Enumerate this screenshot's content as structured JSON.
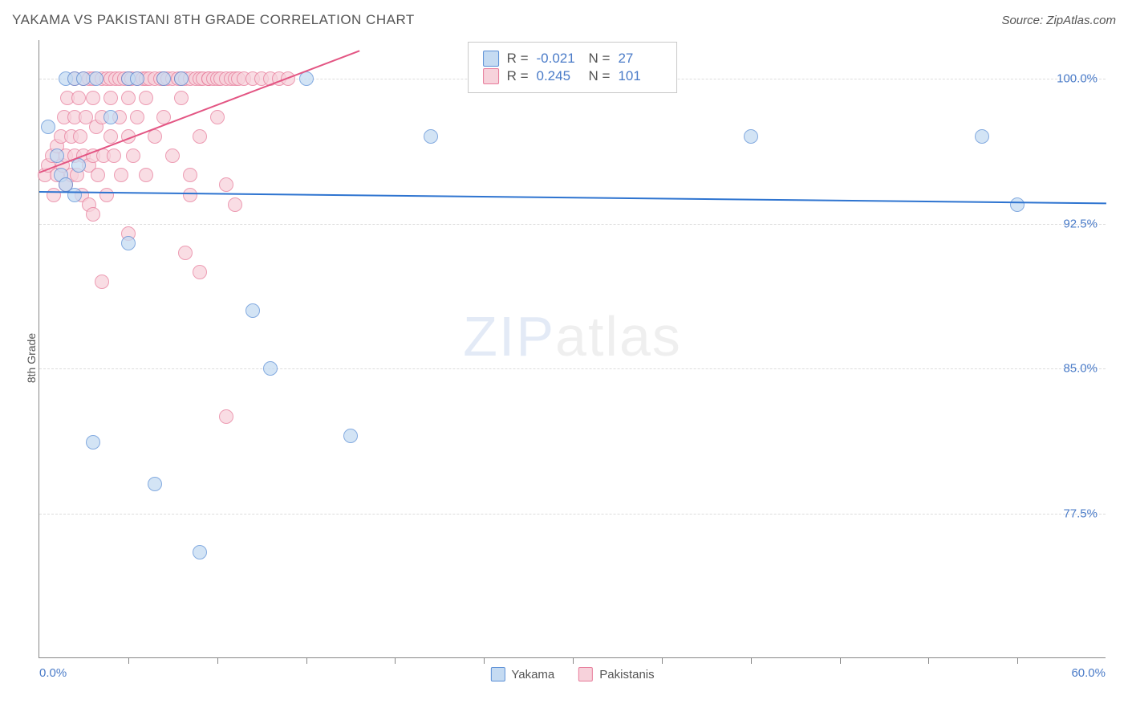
{
  "header": {
    "title": "YAKAMA VS PAKISTANI 8TH GRADE CORRELATION CHART",
    "source": "Source: ZipAtlas.com"
  },
  "watermark": {
    "zip": "ZIP",
    "atlas": "atlas"
  },
  "chart": {
    "type": "scatter",
    "ylabel": "8th Grade",
    "xlim": [
      0,
      60
    ],
    "ylim": [
      70,
      102
    ],
    "background_color": "#ffffff",
    "grid_color": "#dddddd",
    "axis_color": "#888888",
    "xaxis_min_label": "0.0%",
    "xaxis_max_label": "60.0%",
    "ytick_values": [
      77.5,
      85.0,
      92.5,
      100.0
    ],
    "ytick_labels": [
      "77.5%",
      "85.0%",
      "92.5%",
      "100.0%"
    ],
    "xtick_values": [
      5,
      10,
      15,
      20,
      25,
      30,
      35,
      40,
      45,
      50,
      55
    ],
    "point_radius": 9,
    "series": {
      "yakama": {
        "label": "Yakama",
        "fill": "#c5dbf2",
        "stroke": "#5b8fd6",
        "r_label": "R =",
        "r_value": "-0.021",
        "n_label": "N =",
        "n_value": "27",
        "trend": {
          "x1": 0,
          "y1": 94.2,
          "x2": 60,
          "y2": 93.6,
          "color": "#2e74d0",
          "width": 2
        },
        "points": [
          [
            0.5,
            97.5
          ],
          [
            1.0,
            96.0
          ],
          [
            1.5,
            100.0
          ],
          [
            2.0,
            100.0
          ],
          [
            2.5,
            100.0
          ],
          [
            1.2,
            95.0
          ],
          [
            2.0,
            94.0
          ],
          [
            3.2,
            100.0
          ],
          [
            4.0,
            98.0
          ],
          [
            5.0,
            100.0
          ],
          [
            5.5,
            100.0
          ],
          [
            5.0,
            91.5
          ],
          [
            7.0,
            100.0
          ],
          [
            8.0,
            100.0
          ],
          [
            15.0,
            100.0
          ],
          [
            22.0,
            97.0
          ],
          [
            12.0,
            88.0
          ],
          [
            13.0,
            85.0
          ],
          [
            6.5,
            79.0
          ],
          [
            3.0,
            81.2
          ],
          [
            17.5,
            81.5
          ],
          [
            9.0,
            75.5
          ],
          [
            40.0,
            97.0
          ],
          [
            53.0,
            97.0
          ],
          [
            55.0,
            93.5
          ],
          [
            1.5,
            94.5
          ],
          [
            2.2,
            95.5
          ]
        ]
      },
      "pakistanis": {
        "label": "Pakistanis",
        "fill": "#f7d2db",
        "stroke": "#e77b9a",
        "r_label": "R =",
        "r_value": "0.245",
        "n_label": "N =",
        "n_value": "101",
        "trend": {
          "x1": 0,
          "y1": 95.2,
          "x2": 18,
          "y2": 101.5,
          "color": "#e35583",
          "width": 2
        },
        "points": [
          [
            0.3,
            95.0
          ],
          [
            0.5,
            95.5
          ],
          [
            0.7,
            96.0
          ],
          [
            0.8,
            94.0
          ],
          [
            1.0,
            95.0
          ],
          [
            1.0,
            96.5
          ],
          [
            1.2,
            97.0
          ],
          [
            1.3,
            95.5
          ],
          [
            1.4,
            98.0
          ],
          [
            1.5,
            96.0
          ],
          [
            1.5,
            94.5
          ],
          [
            1.6,
            99.0
          ],
          [
            1.8,
            97.0
          ],
          [
            1.8,
            95.0
          ],
          [
            2.0,
            98.0
          ],
          [
            2.0,
            96.0
          ],
          [
            2.0,
            100.0
          ],
          [
            2.1,
            95.0
          ],
          [
            2.2,
            99.0
          ],
          [
            2.3,
            97.0
          ],
          [
            2.4,
            94.0
          ],
          [
            2.5,
            100.0
          ],
          [
            2.5,
            96.0
          ],
          [
            2.6,
            98.0
          ],
          [
            2.8,
            100.0
          ],
          [
            2.8,
            95.5
          ],
          [
            2.8,
            93.5
          ],
          [
            3.0,
            99.0
          ],
          [
            3.0,
            96.0
          ],
          [
            3.0,
            100.0
          ],
          [
            3.2,
            97.5
          ],
          [
            3.3,
            95.0
          ],
          [
            3.5,
            100.0
          ],
          [
            3.5,
            98.0
          ],
          [
            3.6,
            96.0
          ],
          [
            3.8,
            100.0
          ],
          [
            3.8,
            94.0
          ],
          [
            4.0,
            99.0
          ],
          [
            4.0,
            97.0
          ],
          [
            4.0,
            100.0
          ],
          [
            4.2,
            96.0
          ],
          [
            4.3,
            100.0
          ],
          [
            4.5,
            98.0
          ],
          [
            4.5,
            100.0
          ],
          [
            4.6,
            95.0
          ],
          [
            4.8,
            100.0
          ],
          [
            5.0,
            99.0
          ],
          [
            5.0,
            97.0
          ],
          [
            5.0,
            92.0
          ],
          [
            5.0,
            100.0
          ],
          [
            5.2,
            100.0
          ],
          [
            5.3,
            96.0
          ],
          [
            5.5,
            100.0
          ],
          [
            5.5,
            98.0
          ],
          [
            5.8,
            100.0
          ],
          [
            6.0,
            99.0
          ],
          [
            6.0,
            95.0
          ],
          [
            6.0,
            100.0
          ],
          [
            6.2,
            100.0
          ],
          [
            6.5,
            97.0
          ],
          [
            6.5,
            100.0
          ],
          [
            6.8,
            100.0
          ],
          [
            7.0,
            98.0
          ],
          [
            7.0,
            100.0
          ],
          [
            7.2,
            100.0
          ],
          [
            7.5,
            96.0
          ],
          [
            7.5,
            100.0
          ],
          [
            7.8,
            100.0
          ],
          [
            8.0,
            99.0
          ],
          [
            8.0,
            100.0
          ],
          [
            8.2,
            100.0
          ],
          [
            8.5,
            95.0
          ],
          [
            8.5,
            100.0
          ],
          [
            8.5,
            94.0
          ],
          [
            8.8,
            100.0
          ],
          [
            9.0,
            100.0
          ],
          [
            9.0,
            97.0
          ],
          [
            9.0,
            90.0
          ],
          [
            9.2,
            100.0
          ],
          [
            9.5,
            100.0
          ],
          [
            9.5,
            100.0
          ],
          [
            9.8,
            100.0
          ],
          [
            10.0,
            98.0
          ],
          [
            10.0,
            100.0
          ],
          [
            10.2,
            100.0
          ],
          [
            10.5,
            100.0
          ],
          [
            10.5,
            94.5
          ],
          [
            10.8,
            100.0
          ],
          [
            11.0,
            100.0
          ],
          [
            11.0,
            93.5
          ],
          [
            11.2,
            100.0
          ],
          [
            11.5,
            100.0
          ],
          [
            12.0,
            100.0
          ],
          [
            12.5,
            100.0
          ],
          [
            13.0,
            100.0
          ],
          [
            13.5,
            100.0
          ],
          [
            14.0,
            100.0
          ],
          [
            3.0,
            93.0
          ],
          [
            3.5,
            89.5
          ],
          [
            10.5,
            82.5
          ],
          [
            8.2,
            91.0
          ]
        ]
      }
    }
  },
  "legend": {
    "items": [
      {
        "key": "yakama",
        "label": "Yakama"
      },
      {
        "key": "pakistanis",
        "label": "Pakistanis"
      }
    ]
  },
  "colors": {
    "tick_label": "#4a7bc8",
    "text": "#555555"
  }
}
